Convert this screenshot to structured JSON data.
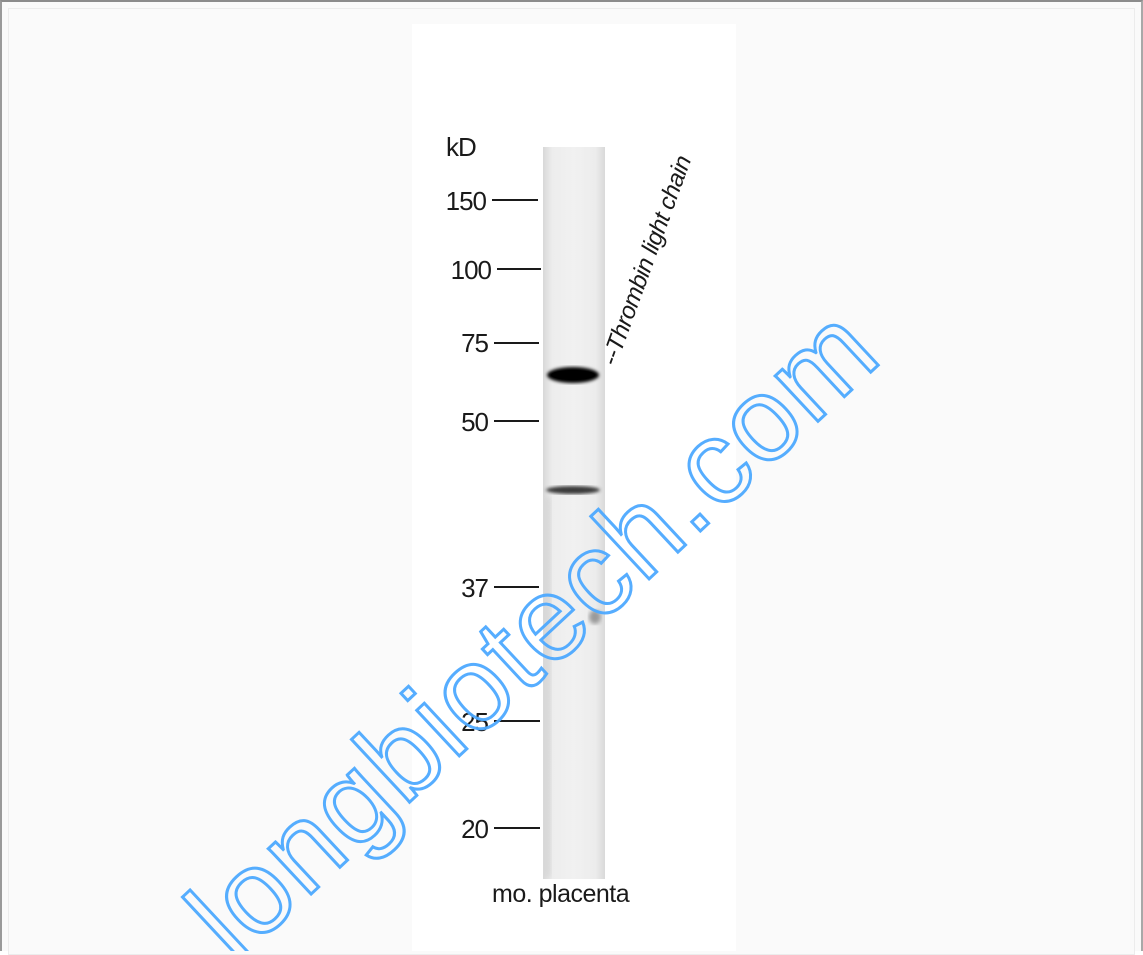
{
  "figure": {
    "unit_label": "kD",
    "markers": [
      "150",
      "100",
      "75",
      "50",
      "37",
      "25",
      "20"
    ],
    "sample_label": "mo. placenta",
    "target_label": "--Thrombin light chain",
    "watermark_text": "bioss longbiotech.com",
    "watermark_color": "#4da9ff",
    "background_color": "#fafafa",
    "panel_color": "#ffffff",
    "lane_color": "#e9e9e9",
    "band_color": "#000000"
  }
}
